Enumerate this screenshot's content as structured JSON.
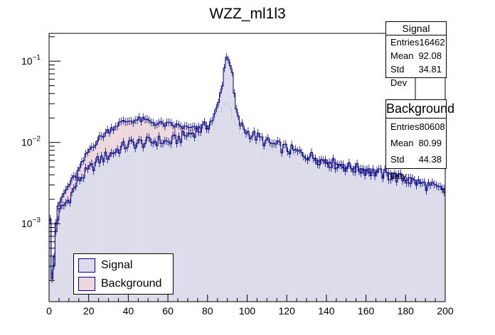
{
  "chart_data": {
    "type": "histogram",
    "title": "WZZ_ml1l3",
    "xlabel": "",
    "ylabel": "",
    "xlim": [
      0,
      200
    ],
    "y_scale": "log",
    "ylim": [
      0.00011,
      0.22
    ],
    "x_ticks": [
      "0",
      "20",
      "40",
      "60",
      "80",
      "100",
      "120",
      "140",
      "160",
      "180",
      "200"
    ],
    "y_ticks": [
      {
        "value": 0.001,
        "base": "10",
        "exp": "−3"
      },
      {
        "value": 0.01,
        "base": "10",
        "exp": "−2"
      },
      {
        "value": 0.1,
        "base": "10",
        "exp": "−1"
      }
    ],
    "bins": 200,
    "bin_width": 1,
    "series": [
      {
        "name": "Signal",
        "fill": "#dcdcea",
        "line": "#000080",
        "profile_knots": [
          [
            0,
            0.006
          ],
          [
            1,
            0.00025
          ],
          [
            2,
            0.00015
          ],
          [
            3,
            0.0006
          ],
          [
            4,
            0.0011
          ],
          [
            6,
            0.0015
          ],
          [
            10,
            0.002
          ],
          [
            15,
            0.0035
          ],
          [
            20,
            0.0045
          ],
          [
            25,
            0.006
          ],
          [
            30,
            0.007
          ],
          [
            35,
            0.0082
          ],
          [
            40,
            0.0095
          ],
          [
            45,
            0.0098
          ],
          [
            50,
            0.01
          ],
          [
            55,
            0.0105
          ],
          [
            60,
            0.01
          ],
          [
            65,
            0.011
          ],
          [
            70,
            0.0125
          ],
          [
            75,
            0.014
          ],
          [
            80,
            0.016
          ],
          [
            83,
            0.02
          ],
          [
            85,
            0.026
          ],
          [
            87,
            0.045
          ],
          [
            88,
            0.07
          ],
          [
            89,
            0.1
          ],
          [
            90,
            0.12
          ],
          [
            91,
            0.112
          ],
          [
            92,
            0.08
          ],
          [
            93,
            0.05
          ],
          [
            94,
            0.03
          ],
          [
            95,
            0.02
          ],
          [
            97,
            0.016
          ],
          [
            100,
            0.0135
          ],
          [
            110,
            0.01
          ],
          [
            120,
            0.0083
          ],
          [
            130,
            0.007
          ],
          [
            140,
            0.0058
          ],
          [
            150,
            0.005
          ],
          [
            160,
            0.0045
          ],
          [
            170,
            0.004
          ],
          [
            180,
            0.0035
          ],
          [
            190,
            0.003
          ],
          [
            200,
            0.0025
          ]
        ]
      },
      {
        "name": "Background",
        "fill": "#ecd8dc",
        "line": "#000080",
        "profile_knots": [
          [
            0,
            0.0045
          ],
          [
            1,
            0.00035
          ],
          [
            2,
            0.0002
          ],
          [
            3,
            0.0008
          ],
          [
            4,
            0.0014
          ],
          [
            6,
            0.002
          ],
          [
            10,
            0.003
          ],
          [
            15,
            0.0045
          ],
          [
            20,
            0.008
          ],
          [
            25,
            0.011
          ],
          [
            30,
            0.014
          ],
          [
            35,
            0.017
          ],
          [
            40,
            0.0185
          ],
          [
            45,
            0.019
          ],
          [
            50,
            0.0185
          ],
          [
            55,
            0.017
          ],
          [
            60,
            0.0165
          ],
          [
            65,
            0.016
          ],
          [
            70,
            0.015
          ],
          [
            75,
            0.0145
          ],
          [
            80,
            0.015
          ],
          [
            83,
            0.017
          ],
          [
            85,
            0.02
          ],
          [
            87,
            0.025
          ],
          [
            88,
            0.028
          ],
          [
            89,
            0.029
          ],
          [
            90,
            0.03
          ],
          [
            91,
            0.028
          ],
          [
            92,
            0.023
          ],
          [
            93,
            0.019
          ],
          [
            95,
            0.016
          ],
          [
            97,
            0.013
          ],
          [
            100,
            0.011
          ],
          [
            110,
            0.0085
          ],
          [
            120,
            0.0075
          ],
          [
            130,
            0.0065
          ],
          [
            140,
            0.0058
          ],
          [
            150,
            0.005
          ],
          [
            160,
            0.0045
          ],
          [
            170,
            0.004
          ],
          [
            180,
            0.0035
          ],
          [
            190,
            0.003
          ],
          [
            200,
            0.0025
          ]
        ]
      }
    ],
    "stats": [
      {
        "title": "Signal",
        "rows": [
          {
            "label": "Entries",
            "value": "16462"
          },
          {
            "label": "Mean",
            "value": "92.08"
          },
          {
            "label": "Std Dev",
            "value": "34.81"
          }
        ]
      },
      {
        "title": "Background",
        "rows": [
          {
            "label": "Entries",
            "value": "80608"
          },
          {
            "label": "Mean",
            "value": "80.99"
          },
          {
            "label": "Std Dev",
            "value": "44.38"
          }
        ]
      }
    ],
    "legend": {
      "placement": "bottom-left",
      "entries": [
        {
          "label": "Signal",
          "color": "#dcdcea"
        },
        {
          "label": "Background",
          "color": "#ecd8dc"
        }
      ]
    }
  }
}
